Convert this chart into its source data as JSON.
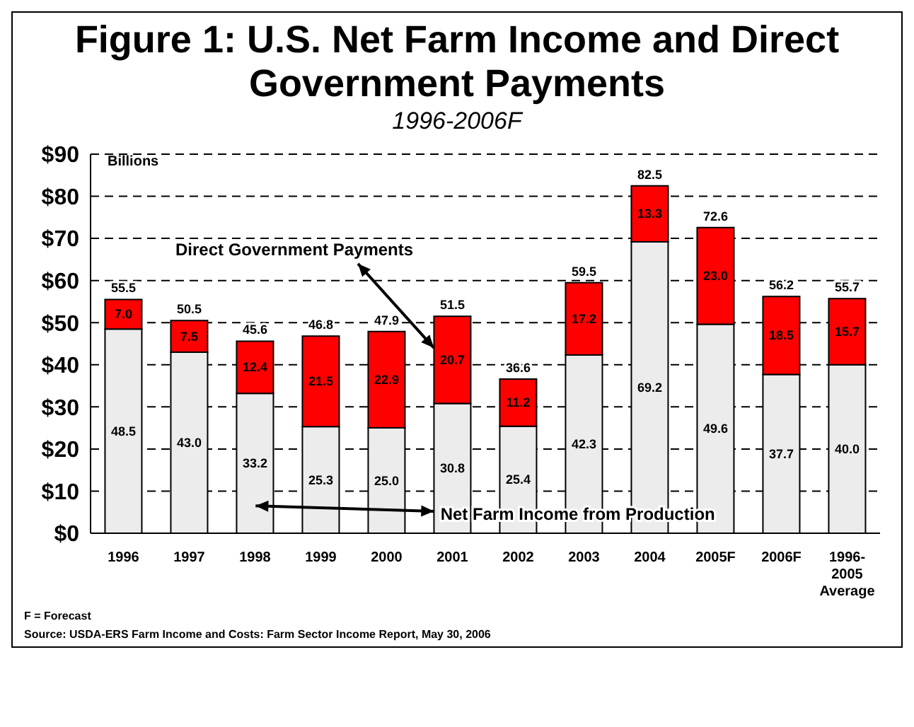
{
  "chart_data": {
    "type": "bar",
    "title": "Figure 1:  U.S. Net Farm Income and Direct Government Payments",
    "subtitle": "1996-2006F",
    "ylabel": "Billions",
    "categories": [
      "1996",
      "1997",
      "1998",
      "1999",
      "2000",
      "2001",
      "2002",
      "2003",
      "2004",
      "2005F",
      "2006F",
      "1996-2005 Average"
    ],
    "stacked": true,
    "series": [
      {
        "name": "Net Farm Income from Production",
        "color": "#ececec",
        "values": [
          48.5,
          43.0,
          33.2,
          25.3,
          25.0,
          30.8,
          25.4,
          42.3,
          69.2,
          49.6,
          37.7,
          40.0
        ],
        "value_labels": [
          "48.5",
          "43.0",
          "33.2",
          "25.3",
          "25.0",
          "30.8",
          "25.4",
          "42.3",
          "69.2",
          "49.6",
          "37.7",
          "40.0"
        ]
      },
      {
        "name": "Direct Government Payments",
        "color": "#ff0000",
        "values": [
          7.0,
          7.5,
          12.4,
          21.5,
          22.9,
          20.7,
          11.2,
          17.2,
          13.3,
          23.0,
          18.5,
          15.7
        ],
        "value_labels": [
          "7.0",
          "7.5",
          "12.4",
          "21.5",
          "22.9",
          "20.7",
          "11.2",
          "17.2",
          "13.3",
          "23.0",
          "18.5",
          "15.7"
        ]
      }
    ],
    "totals": [
      "55.5",
      "50.5",
      "45.6",
      "46.8",
      "47.9",
      "51.5",
      "36.6",
      "59.5",
      "82.5",
      "72.6",
      "56.2",
      "55.7"
    ],
    "ylim": [
      0,
      90
    ],
    "yticks": [
      {
        "value": 0,
        "label": "$0"
      },
      {
        "value": 10,
        "label": "$10"
      },
      {
        "value": 20,
        "label": "$20"
      },
      {
        "value": 30,
        "label": "$30"
      },
      {
        "value": 40,
        "label": "$40"
      },
      {
        "value": 50,
        "label": "$50"
      },
      {
        "value": 60,
        "label": "$60"
      },
      {
        "value": 70,
        "label": "$70"
      },
      {
        "value": 80,
        "label": "$80"
      },
      {
        "value": 90,
        "label": "$90"
      }
    ],
    "grid": "y",
    "annotations": [
      "F = Forecast",
      "Source:  USDA-ERS Farm Income and Costs: Farm Sector Income Report, May 30, 2006"
    ]
  }
}
